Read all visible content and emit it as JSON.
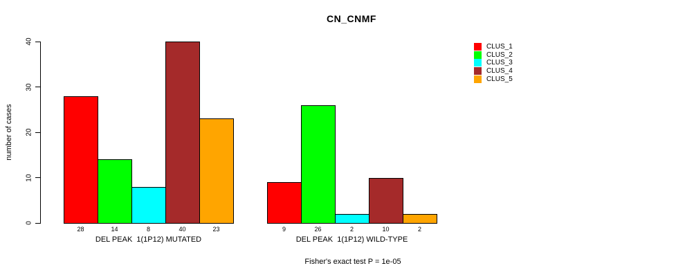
{
  "chart_data": {
    "type": "bar",
    "title": "CN_CNMF",
    "ylabel": "number of cases",
    "xlabel": "",
    "ylim": [
      0,
      40
    ],
    "yticks": [
      0,
      10,
      20,
      30,
      40
    ],
    "grid": false,
    "legend_position": "right",
    "series": [
      {
        "name": "CLUS_1",
        "color": "#FF0000"
      },
      {
        "name": "CLUS_2",
        "color": "#00FF00"
      },
      {
        "name": "CLUS_3",
        "color": "#00FFFF"
      },
      {
        "name": "CLUS_4",
        "color": "#A52A2A"
      },
      {
        "name": "CLUS_5",
        "color": "#FFA500"
      }
    ],
    "groups": [
      {
        "label": "DEL PEAK  1(1P12) MUTATED",
        "values": [
          28,
          14,
          8,
          40,
          23
        ]
      },
      {
        "label": "DEL PEAK  1(1P12) WILD-TYPE",
        "values": [
          9,
          26,
          2,
          10,
          2
        ]
      }
    ],
    "annotation": "Fisher's exact test P = 1e-05"
  }
}
